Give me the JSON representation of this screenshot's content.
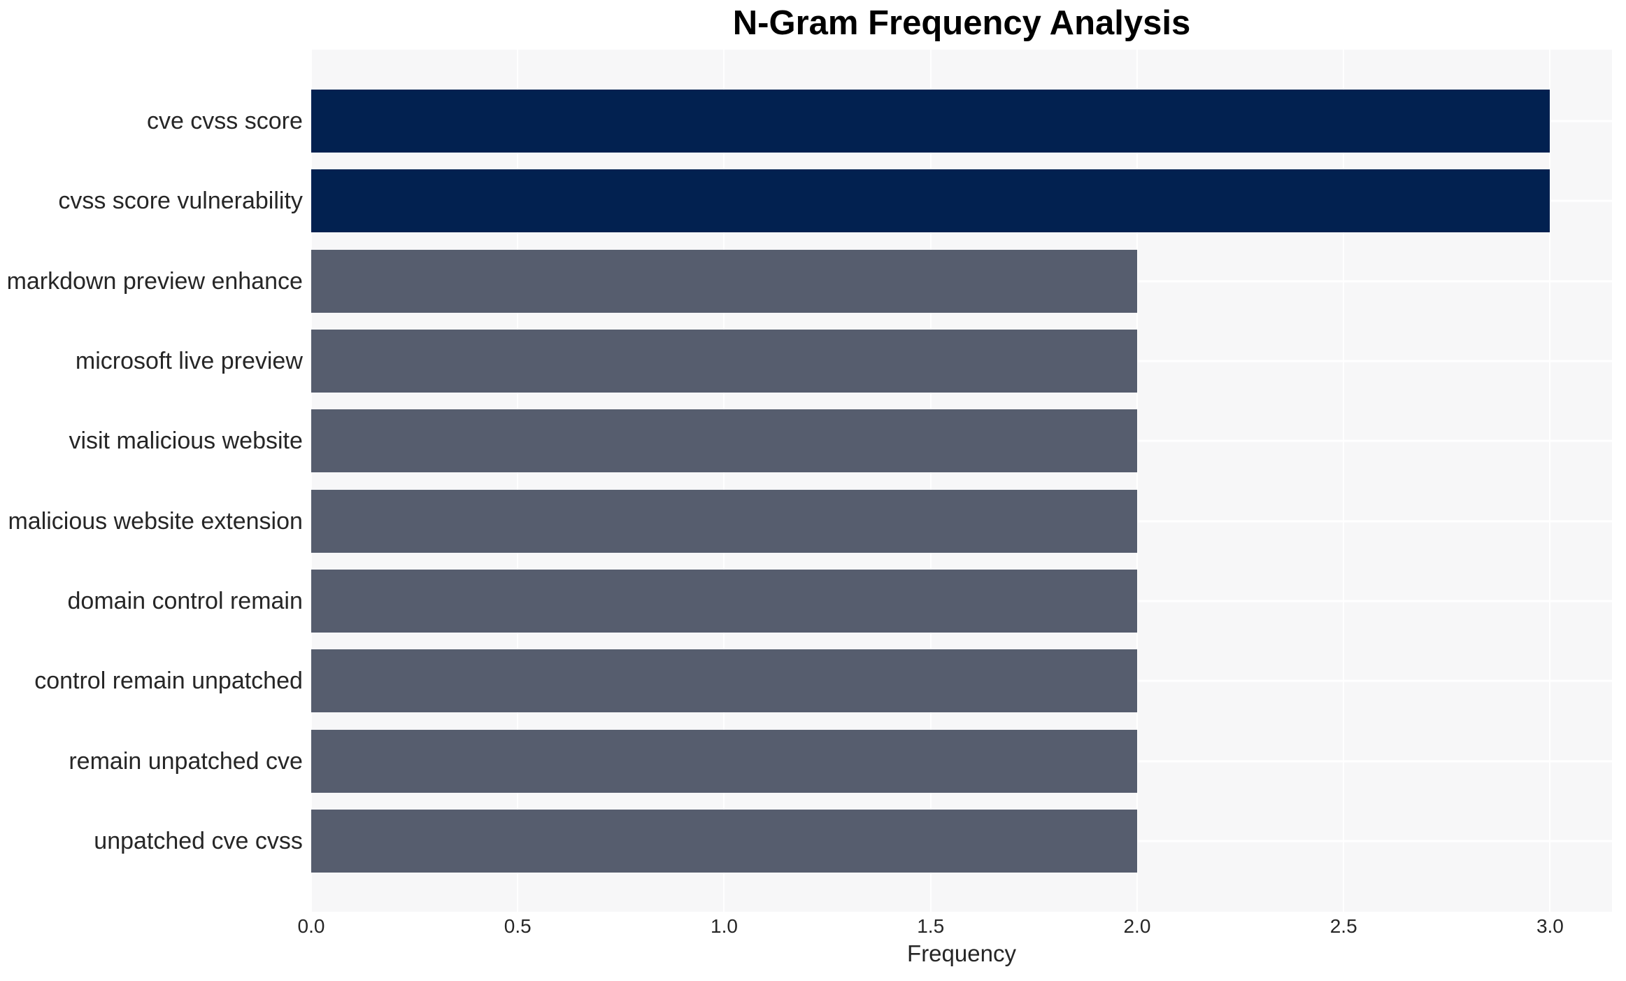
{
  "chart_data": {
    "type": "bar",
    "orientation": "horizontal",
    "title": "N-Gram Frequency Analysis",
    "xlabel": "Frequency",
    "ylabel": "",
    "categories": [
      "cve cvss score",
      "cvss score vulnerability",
      "markdown preview enhance",
      "microsoft live preview",
      "visit malicious website",
      "malicious website extension",
      "domain control remain",
      "control remain unpatched",
      "remain unpatched cve",
      "unpatched cve cvss"
    ],
    "values": [
      3,
      3,
      2,
      2,
      2,
      2,
      2,
      2,
      2,
      2
    ],
    "bar_colors": [
      "#022150",
      "#022150",
      "#565d6e",
      "#565d6e",
      "#565d6e",
      "#565d6e",
      "#565d6e",
      "#565d6e",
      "#565d6e",
      "#565d6e"
    ],
    "x_ticks": [
      0,
      0.5,
      1,
      1.5,
      2,
      2.5,
      3
    ],
    "x_tick_labels": [
      "0.0",
      "0.5",
      "1.0",
      "1.5",
      "2.0",
      "2.5",
      "3.0"
    ],
    "xlim": [
      0,
      3.15
    ],
    "grid": true,
    "legend": false,
    "layout": {
      "row_center_start_pct": 8.279,
      "row_pitch_pct": 9.2799
    },
    "colors": {
      "bar_high": "#022150",
      "bar_low": "#565d6e",
      "plot_background": "#f7f7f8",
      "figure_background": "#ffffff",
      "gridline": "#ffffff",
      "text": "#262626",
      "title_text": "#000000"
    }
  }
}
